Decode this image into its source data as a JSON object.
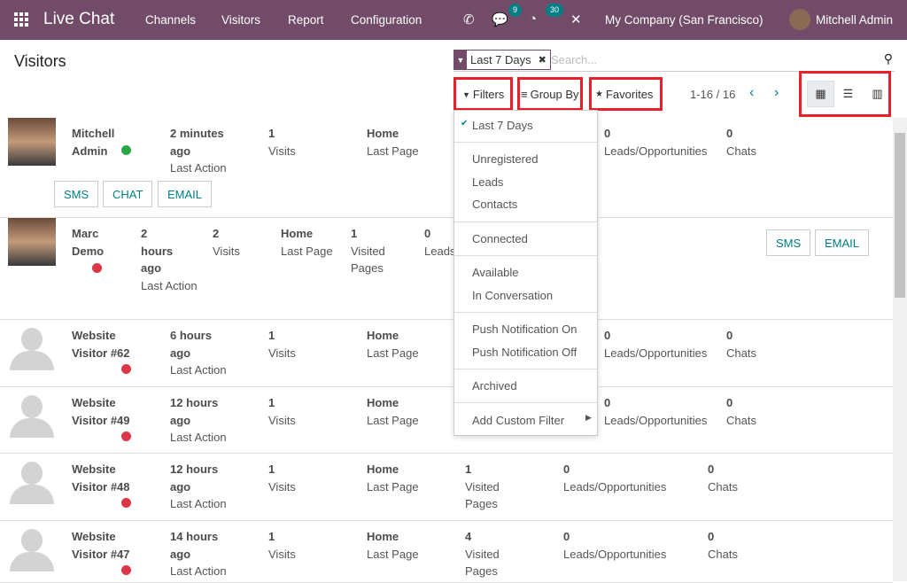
{
  "nav": {
    "app": "Live Chat",
    "menus": [
      "Channels",
      "Visitors",
      "Report",
      "Configuration"
    ],
    "msg_count": "9",
    "activity_count": "30",
    "company": "My Company (San Francisco)",
    "user": "Mitchell Admin"
  },
  "page": {
    "title": "Visitors"
  },
  "search": {
    "facet": "Last 7 Days",
    "placeholder": "Search..."
  },
  "toolbar": {
    "filters": "Filters",
    "group_by": "Group By",
    "favorites": "Favorites",
    "pager": "1-16 / 16"
  },
  "colors": {
    "brand": "#714b67",
    "accent": "#017e84",
    "online": "#28a745",
    "offline": "#dc3545",
    "highlight": "#e8202a"
  },
  "filters_menu": {
    "items": [
      "Last 7 Days",
      "Unregistered",
      "Leads",
      "Contacts",
      "Connected",
      "Available",
      "In Conversation",
      "Push Notification On",
      "Push Notification Off",
      "Archived",
      "Add Custom Filter"
    ]
  },
  "labels": {
    "last_action": "Last Action",
    "visits": "Visits",
    "last_page": "Last Page",
    "visited_pages": "Visited Pages",
    "leads": "Leads/Opportunities",
    "chats": "Chats",
    "sms": "SMS",
    "chat": "CHAT",
    "email": "EMAIL"
  },
  "visitors": [
    {
      "name1": "Mitchell",
      "name2": "Admin",
      "time1": "2 minutes",
      "time2": "ago",
      "visits": "1",
      "page": "Home",
      "pages": "",
      "leads": "0",
      "chats": "0",
      "status": "online"
    },
    {
      "name1": "Marc",
      "name2": "Demo",
      "time1": "2",
      "time2": "hours",
      "time3": "ago",
      "visits": "2",
      "page": "Home",
      "pages": "1",
      "leads": "0",
      "status": "offline"
    },
    {
      "name1": "Website",
      "name2": "Visitor #62",
      "time1": "6 hours",
      "time2": "ago",
      "visits": "1",
      "page": "Home",
      "pages": "",
      "leads": "0",
      "chats": "0",
      "status": "offline"
    },
    {
      "name1": "Website",
      "name2": "Visitor #49",
      "time1": "12 hours",
      "time2": "ago",
      "visits": "1",
      "page": "Home",
      "pages": "",
      "leads": "0",
      "chats": "0",
      "status": "offline"
    },
    {
      "name1": "Website",
      "name2": "Visitor #48",
      "time1": "12 hours",
      "time2": "ago",
      "visits": "1",
      "page": "Home",
      "pages": "1",
      "leads": "0",
      "chats": "0",
      "status": "offline"
    },
    {
      "name1": "Website",
      "name2": "Visitor #47",
      "time1": "14 hours",
      "time2": "ago",
      "visits": "1",
      "page": "Home",
      "pages": "4",
      "leads": "0",
      "chats": "0",
      "status": "offline"
    }
  ]
}
